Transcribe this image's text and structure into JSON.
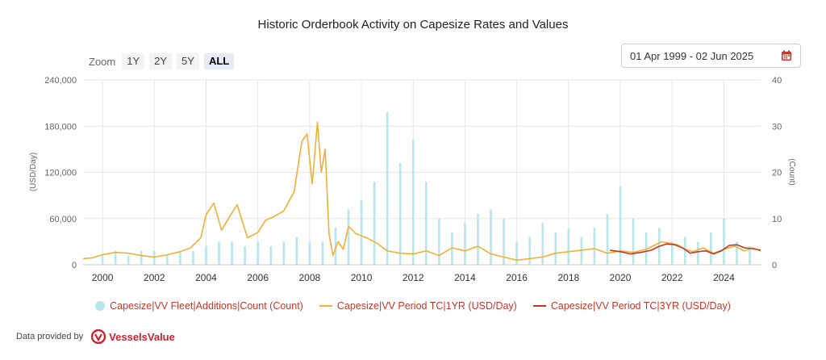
{
  "header": {
    "title": "Historic Orderbook Activity on Capesize Rates and Values"
  },
  "zoom": {
    "label": "Zoom",
    "buttons": [
      "1Y",
      "2Y",
      "5Y",
      "ALL"
    ],
    "active": "ALL"
  },
  "date_range": {
    "text": "01 Apr 1999 - 02 Jun 2025",
    "icon": "calendar-icon"
  },
  "legend": {
    "items": [
      "Capesize|VV Fleet|Additions|Count (Count)",
      "Capesize|VV Period TC|1YR (USD/Day)",
      "Capesize|VV Period TC|3YR (USD/Day)"
    ]
  },
  "footer": {
    "provided_by": "Data provided by",
    "brand": "VesselsValue"
  },
  "colors": {
    "bars": "#b7e6ea",
    "tc1": "#f0b034",
    "tc3": "#c0392b",
    "grid": "#e6e6e6"
  },
  "chart_data": {
    "type": "line",
    "title": "Historic Orderbook Activity on Capesize Rates and Values",
    "y_left": {
      "label": "(USD/Day)",
      "range": [
        0,
        240000
      ],
      "ticks": [
        "0",
        "60,000",
        "120,000",
        "180,000",
        "240,000"
      ]
    },
    "y_right": {
      "label": "(Count)",
      "range": [
        0,
        40
      ],
      "ticks": [
        "0",
        "10",
        "20",
        "30",
        "40"
      ]
    },
    "x_ticks": [
      "2000",
      "2002",
      "2004",
      "2006",
      "2008",
      "2010",
      "2012",
      "2014",
      "2016",
      "2018",
      "2020",
      "2022",
      "2024"
    ],
    "x_range": [
      1999.25,
      2025.42
    ],
    "grid": true,
    "legend_position": "bottom",
    "series": [
      {
        "name": "Capesize|VV Fleet|Additions|Count (Count)",
        "type": "bar",
        "axis": "right",
        "x": [
          2000,
          2000.5,
          2001,
          2001.5,
          2002,
          2002.5,
          2003,
          2003.5,
          2004,
          2004.5,
          2005,
          2005.5,
          2006,
          2006.5,
          2007,
          2007.5,
          2008,
          2008.5,
          2009,
          2009.5,
          2010,
          2010.5,
          2011,
          2011.5,
          2012,
          2012.5,
          2013,
          2013.5,
          2014,
          2014.5,
          2015,
          2015.5,
          2016,
          2016.5,
          2017,
          2017.5,
          2018,
          2018.5,
          2019,
          2019.5,
          2020,
          2020.5,
          2021,
          2021.5,
          2022,
          2022.5,
          2023,
          2023.5,
          2024,
          2024.5,
          2025
        ],
        "values": [
          2,
          3,
          2,
          3,
          3,
          2,
          3,
          3,
          4,
          5,
          5,
          4,
          5,
          4,
          5,
          6,
          5,
          5,
          8,
          12,
          14,
          18,
          33,
          22,
          27,
          18,
          10,
          7,
          9,
          11,
          12,
          10,
          5,
          6,
          9,
          7,
          8,
          6,
          8,
          11,
          17,
          10,
          7,
          8,
          5,
          6,
          5,
          7,
          10,
          5,
          4
        ]
      },
      {
        "name": "Capesize|VV Period TC|1YR (USD/Day)",
        "type": "line",
        "axis": "left",
        "x": [
          1999.25,
          1999.6,
          2000,
          2000.5,
          2001,
          2001.5,
          2002,
          2002.5,
          2003,
          2003.4,
          2003.8,
          2004,
          2004.3,
          2004.6,
          2004.9,
          2005.2,
          2005.6,
          2006,
          2006.3,
          2006.6,
          2007,
          2007.4,
          2007.7,
          2007.9,
          2008.1,
          2008.3,
          2008.45,
          2008.6,
          2008.75,
          2008.9,
          2009.1,
          2009.3,
          2009.5,
          2009.8,
          2010.2,
          2010.6,
          2011,
          2011.5,
          2012,
          2012.5,
          2013,
          2013.5,
          2014,
          2014.5,
          2015,
          2015.5,
          2016,
          2016.5,
          2017,
          2017.5,
          2018,
          2018.5,
          2019,
          2019.5,
          2020,
          2020.5,
          2021,
          2021.3,
          2021.6,
          2021.9,
          2022.2,
          2022.5,
          2022.8,
          2023.2,
          2023.6,
          2024,
          2024.4,
          2024.8,
          2025.1,
          2025.42
        ],
        "values": [
          8000,
          9000,
          13000,
          16000,
          15000,
          12000,
          10000,
          13000,
          17000,
          22000,
          35000,
          65000,
          80000,
          45000,
          62000,
          78000,
          35000,
          42000,
          58000,
          62000,
          70000,
          95000,
          160000,
          170000,
          105000,
          185000,
          120000,
          150000,
          40000,
          12000,
          30000,
          20000,
          50000,
          40000,
          35000,
          28000,
          18000,
          15000,
          14000,
          18000,
          12000,
          22000,
          18000,
          24000,
          14000,
          10000,
          6000,
          8000,
          10000,
          15000,
          17000,
          19000,
          21000,
          15000,
          18000,
          16000,
          20000,
          25000,
          30000,
          28000,
          26000,
          20000,
          17000,
          22000,
          15000,
          20000,
          24000,
          18000,
          22000,
          18000
        ]
      },
      {
        "name": "Capesize|VV Period TC|3YR (USD/Day)",
        "type": "line",
        "axis": "left",
        "x": [
          2019.6,
          2020,
          2020.4,
          2020.8,
          2021.2,
          2021.5,
          2021.8,
          2022.1,
          2022.4,
          2022.7,
          2023,
          2023.3,
          2023.6,
          2023.9,
          2024.2,
          2024.5,
          2024.8,
          2025.1,
          2025.42
        ],
        "values": [
          19000,
          17000,
          14000,
          16000,
          19000,
          24000,
          27000,
          26000,
          22000,
          15000,
          17000,
          18000,
          14000,
          18000,
          25000,
          26000,
          22000,
          21000,
          19000
        ]
      }
    ]
  }
}
